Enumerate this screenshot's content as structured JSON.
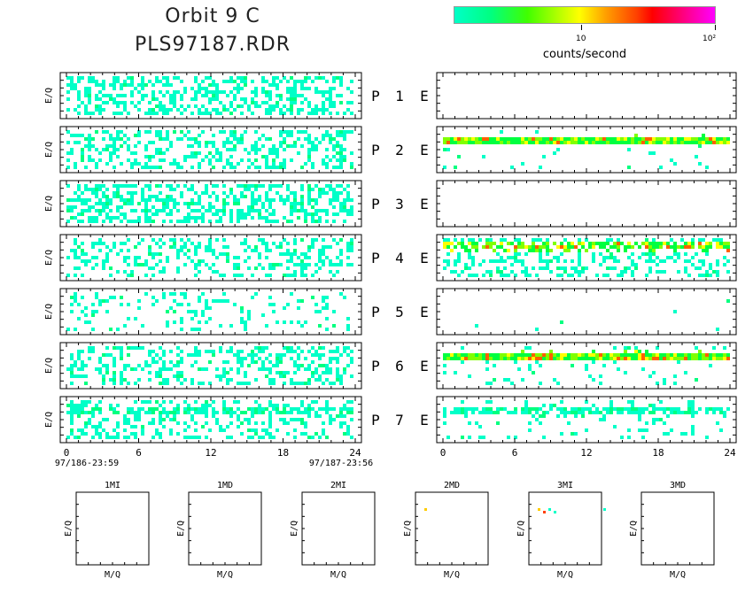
{
  "title": {
    "line1": "Orbit  9  C",
    "line2": "PLS97187.RDR"
  },
  "colorbar": {
    "label": "counts/second",
    "ticks": [
      {
        "text": "10",
        "value": 10
      },
      {
        "text": "10²",
        "value": 100
      }
    ],
    "scale": "log",
    "colors": [
      "#00ffc8",
      "#40ff00",
      "#ffff00",
      "#ffa000",
      "#ff0000",
      "#ff00ff"
    ]
  },
  "chart_data": [
    {
      "type": "heatmap",
      "group": "P-channels (left column)",
      "ylabel": "E/Q",
      "x_ticks": [
        "0",
        "6",
        "12",
        "18",
        "24"
      ],
      "xlim": [
        0,
        24
      ],
      "x_start_label": "97/186-23:59",
      "x_end_label": "97/187-23:56",
      "panels": [
        {
          "label_letter": "P",
          "label_num": "1",
          "density": 0.45,
          "band": 0
        },
        {
          "label_letter": "P",
          "label_num": "2",
          "density": 0.35,
          "band": 0
        },
        {
          "label_letter": "P",
          "label_num": "3",
          "density": 0.45,
          "band": 0
        },
        {
          "label_letter": "P",
          "label_num": "4",
          "density": 0.3,
          "band": 0
        },
        {
          "label_letter": "P",
          "label_num": "5",
          "density": 0.18,
          "band": 0
        },
        {
          "label_letter": "P",
          "label_num": "6",
          "density": 0.35,
          "band": 0
        },
        {
          "label_letter": "P",
          "label_num": "7",
          "density": 0.3,
          "band": 1
        }
      ]
    },
    {
      "type": "heatmap",
      "group": "E-channels (right column)",
      "x_ticks": [
        "0",
        "6",
        "12",
        "18",
        "24"
      ],
      "xlim": [
        0,
        24
      ],
      "panels": [
        {
          "label_letter": "E",
          "density": 0.0,
          "band": 0
        },
        {
          "label_letter": "E",
          "density": 0.05,
          "band": 3
        },
        {
          "label_letter": "E",
          "density": 0.0,
          "band": 0
        },
        {
          "label_letter": "E",
          "density": 0.35,
          "band": 2
        },
        {
          "label_letter": "E",
          "density": 0.01,
          "band": 0
        },
        {
          "label_letter": "E",
          "density": 0.08,
          "band": 3
        },
        {
          "label_letter": "E",
          "density": 0.12,
          "band": 1
        }
      ]
    },
    {
      "type": "heatmap",
      "group": "Mass spectra",
      "xlabel": "M/Q",
      "ylabel": "E/Q",
      "panels": [
        {
          "title": "1MI",
          "hits": 0
        },
        {
          "title": "1MD",
          "hits": 0
        },
        {
          "title": "2MI",
          "hits": 0
        },
        {
          "title": "2MD",
          "hits": 1
        },
        {
          "title": "3MI",
          "hits": 5
        },
        {
          "title": "3MD",
          "hits": 0
        }
      ]
    }
  ]
}
